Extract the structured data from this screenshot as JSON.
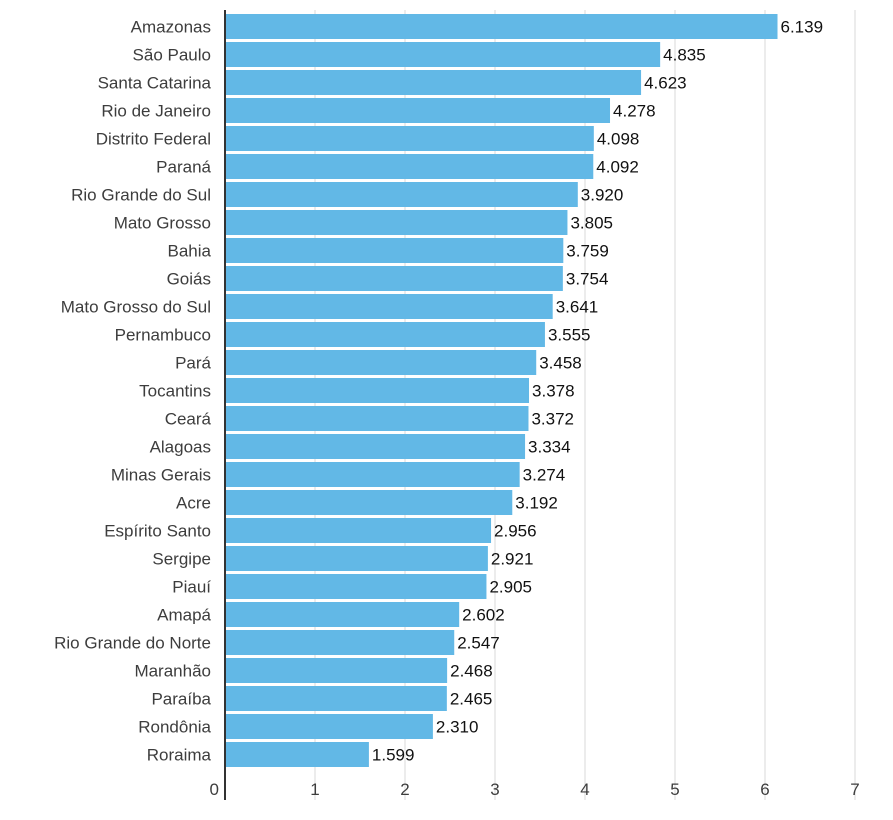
{
  "chart_data": {
    "type": "bar",
    "orientation": "horizontal",
    "categories": [
      "Amazonas",
      "São Paulo",
      "Santa Catarina",
      "Rio de Janeiro",
      "Distrito Federal",
      "Paraná",
      "Rio Grande do Sul",
      "Mato Grosso",
      "Bahia",
      "Goiás",
      "Mato Grosso do Sul",
      "Pernambuco",
      "Pará",
      "Tocantins",
      "Ceará",
      "Alagoas",
      "Minas Gerais",
      "Acre",
      "Espírito Santo",
      "Sergipe",
      "Piauí",
      "Amapá",
      "Rio Grande do Norte",
      "Maranhão",
      "Paraíba",
      "Rondônia",
      "Roraima"
    ],
    "values": [
      6.139,
      4.835,
      4.623,
      4.278,
      4.098,
      4.092,
      3.92,
      3.805,
      3.759,
      3.754,
      3.641,
      3.555,
      3.458,
      3.378,
      3.372,
      3.334,
      3.274,
      3.192,
      2.956,
      2.921,
      2.905,
      2.602,
      2.547,
      2.468,
      2.465,
      2.31,
      1.599
    ],
    "value_labels": [
      "6.139",
      "4.835",
      "4.623",
      "4.278",
      "4.098",
      "4.092",
      "3.920",
      "3.805",
      "3.759",
      "3.754",
      "3.641",
      "3.555",
      "3.458",
      "3.378",
      "3.372",
      "3.334",
      "3.274",
      "3.192",
      "2.956",
      "2.921",
      "2.905",
      "2.602",
      "2.547",
      "2.468",
      "2.465",
      "2.310",
      "1.599"
    ],
    "xticks": [
      0,
      1,
      2,
      3,
      4,
      5,
      6,
      7
    ],
    "xlim": [
      0,
      7
    ],
    "title": "",
    "xlabel": "",
    "ylabel": "",
    "grid": true,
    "legend": "none",
    "bar_color": "#62b8e6",
    "grid_color": "#d9d9d9",
    "axis_color": "#333333"
  }
}
